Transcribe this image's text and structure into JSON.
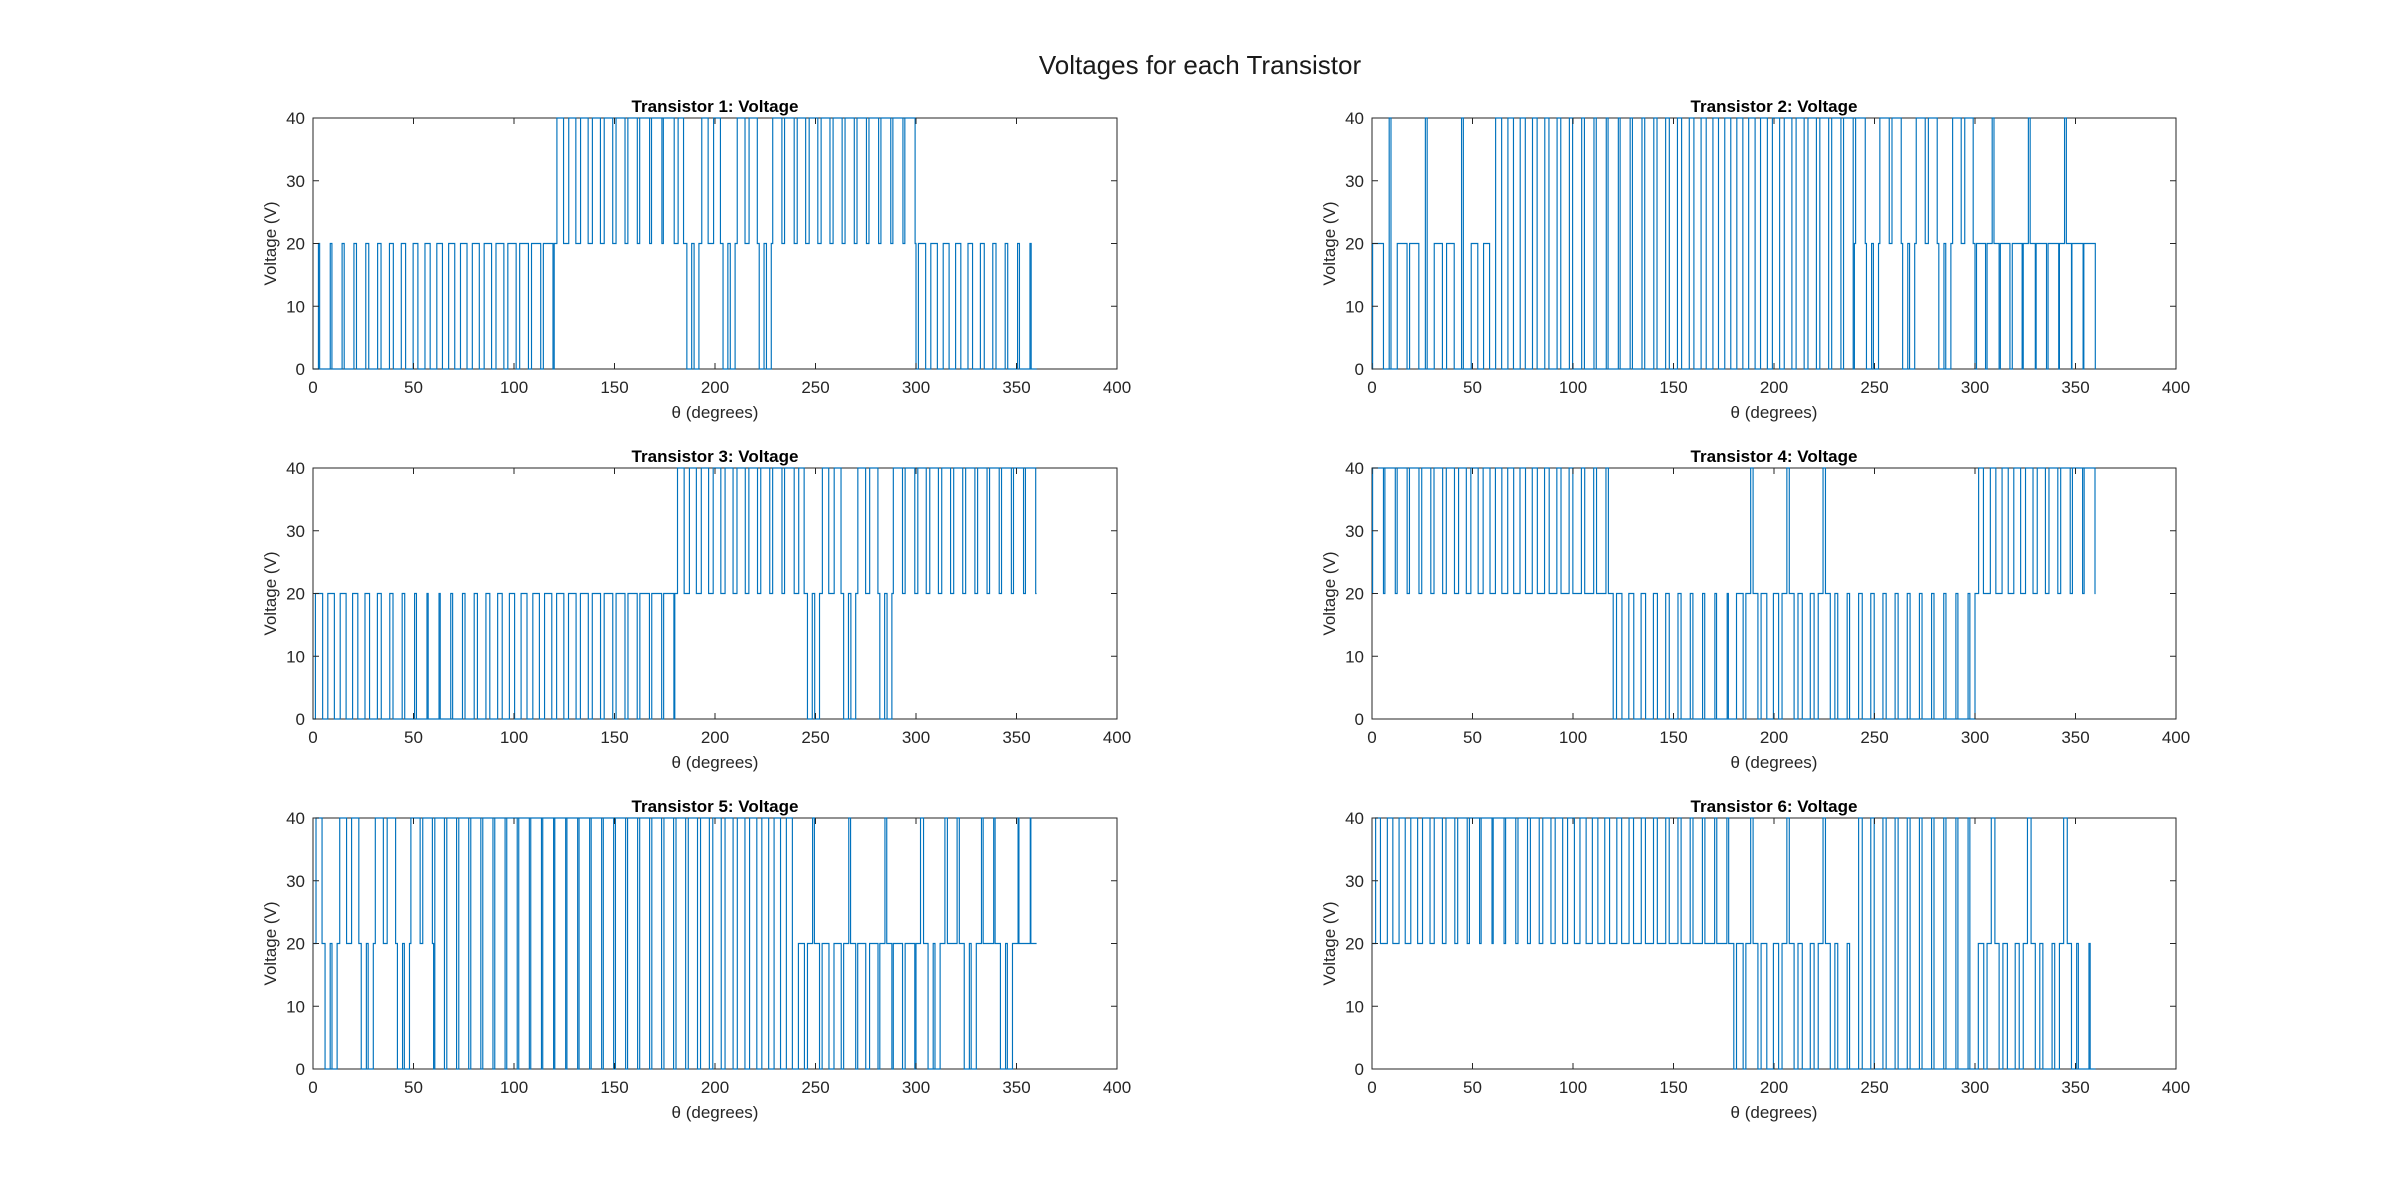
{
  "figure": {
    "title": "Voltages for each Transistor"
  },
  "style": {
    "line_color": "#0072BD",
    "axis_color": "#262626",
    "background": "#ffffff"
  },
  "chart_data": [
    {
      "type": "line",
      "title": "Transistor 1: Voltage",
      "xlabel": "θ (degrees)",
      "ylabel": "Voltage (V)",
      "xlim": [
        0,
        400
      ],
      "ylim": [
        0,
        40
      ],
      "xticks": [
        0,
        50,
        100,
        150,
        200,
        250,
        300,
        350,
        400
      ],
      "yticks": [
        0,
        10,
        20,
        30,
        40
      ],
      "grid": false,
      "series": [
        {
          "style": "pwm-square-wave",
          "x_range": [
            0,
            360
          ],
          "pulse_period_deg": 6,
          "segments": [
            {
              "x0": 0,
              "x1": 120,
              "low": 0,
              "high": 20,
              "duty": [
                0.1,
                0.8
              ]
            },
            {
              "x0": 120,
              "x1": 180,
              "low": 20,
              "high": 40,
              "duty": [
                0.55,
                0.9
              ]
            },
            {
              "x0": 180,
              "x1": 240,
              "low": 20,
              "high": 40,
              "duty": [
                0.45,
                0.8
              ],
              "overlay": {
                "low": 0,
                "high": 20,
                "duty": 0.2
              }
            },
            {
              "x0": 240,
              "x1": 300,
              "low": 20,
              "high": 40,
              "duty": [
                0.7,
                0.85
              ]
            },
            {
              "x0": 300,
              "x1": 360,
              "low": 0,
              "high": 20,
              "duty": [
                0.6,
                0.1
              ]
            }
          ]
        }
      ]
    },
    {
      "type": "line",
      "title": "Transistor 2: Voltage",
      "xlabel": "θ (degrees)",
      "ylabel": "Voltage (V)",
      "xlim": [
        0,
        400
      ],
      "ylim": [
        0,
        40
      ],
      "xticks": [
        0,
        50,
        100,
        150,
        200,
        250,
        300,
        350,
        400
      ],
      "yticks": [
        0,
        10,
        20,
        30,
        40
      ],
      "grid": false,
      "series": [
        {
          "style": "pwm-square-wave",
          "x_range": [
            0,
            360
          ],
          "pulse_period_deg": 6,
          "segments": [
            {
              "x0": 0,
              "x1": 60,
              "low": 0,
              "high": 20,
              "duty": [
                0.9,
                0.5
              ],
              "overlay": {
                "low": 0,
                "high": 40,
                "duty": 0.15
              }
            },
            {
              "x0": 60,
              "x1": 120,
              "low": 0,
              "high": 40,
              "duty": [
                0.5,
                0.15
              ]
            },
            {
              "x0": 120,
              "x1": 180,
              "low": 0,
              "high": 40,
              "duty": [
                0.15,
                0.5
              ]
            },
            {
              "x0": 180,
              "x1": 240,
              "low": 0,
              "high": 40,
              "duty": [
                0.5,
                0.8
              ]
            },
            {
              "x0": 240,
              "x1": 300,
              "low": 20,
              "high": 40,
              "duty": [
                0.8,
                0.7
              ],
              "overlay": {
                "low": 0,
                "high": 20,
                "duty": 0.15
              }
            },
            {
              "x0": 300,
              "x1": 360,
              "low": 0,
              "high": 20,
              "duty": [
                0.75,
                0.95
              ],
              "overlay": {
                "low": 20,
                "high": 40,
                "duty": 0.15
              }
            }
          ]
        }
      ]
    },
    {
      "type": "line",
      "title": "Transistor 3: Voltage",
      "xlabel": "θ (degrees)",
      "ylabel": "Voltage (V)",
      "xlim": [
        0,
        400
      ],
      "ylim": [
        0,
        40
      ],
      "xticks": [
        0,
        50,
        100,
        150,
        200,
        250,
        300,
        350,
        400
      ],
      "yticks": [
        0,
        10,
        20,
        30,
        40
      ],
      "grid": false,
      "series": [
        {
          "style": "pwm-square-wave",
          "x_range": [
            0,
            360
          ],
          "pulse_period_deg": 6,
          "segments": [
            {
              "x0": 0,
              "x1": 60,
              "low": 0,
              "high": 20,
              "duty": [
                0.6,
                0.1
              ]
            },
            {
              "x0": 60,
              "x1": 120,
              "low": 0,
              "high": 20,
              "duty": [
                0.1,
                0.6
              ]
            },
            {
              "x0": 120,
              "x1": 180,
              "low": 0,
              "high": 20,
              "duty": [
                0.6,
                0.85
              ]
            },
            {
              "x0": 180,
              "x1": 240,
              "low": 20,
              "high": 40,
              "duty": [
                0.55,
                0.8
              ]
            },
            {
              "x0": 240,
              "x1": 300,
              "low": 20,
              "high": 40,
              "duty": [
                0.45,
                0.8
              ],
              "overlay": {
                "low": 0,
                "high": 20,
                "duty": 0.2
              }
            },
            {
              "x0": 300,
              "x1": 360,
              "low": 20,
              "high": 40,
              "duty": [
                0.7,
                0.85
              ]
            }
          ]
        }
      ]
    },
    {
      "type": "line",
      "title": "Transistor 4: Voltage",
      "xlabel": "θ (degrees)",
      "ylabel": "Voltage (V)",
      "xlim": [
        0,
        400
      ],
      "ylim": [
        0,
        40
      ],
      "xticks": [
        0,
        50,
        100,
        150,
        200,
        250,
        300,
        350,
        400
      ],
      "yticks": [
        0,
        10,
        20,
        30,
        40
      ],
      "grid": false,
      "series": [
        {
          "style": "pwm-square-wave",
          "x_range": [
            0,
            360
          ],
          "pulse_period_deg": 6,
          "segments": [
            {
              "x0": 0,
              "x1": 120,
              "low": 20,
              "high": 40,
              "duty": [
                0.9,
                0.2
              ]
            },
            {
              "x0": 120,
              "x1": 180,
              "low": 0,
              "high": 20,
              "duty": [
                0.45,
                0.1
              ]
            },
            {
              "x0": 180,
              "x1": 240,
              "low": 0,
              "high": 20,
              "duty": [
                0.55,
                0.2
              ],
              "overlay": {
                "low": 20,
                "high": 40,
                "duty": 0.2
              }
            },
            {
              "x0": 240,
              "x1": 300,
              "low": 0,
              "high": 20,
              "duty": [
                0.3,
                0.15
              ]
            },
            {
              "x0": 300,
              "x1": 360,
              "low": 20,
              "high": 40,
              "duty": [
                0.4,
                0.9
              ]
            }
          ]
        }
      ]
    },
    {
      "type": "line",
      "title": "Transistor 5: Voltage",
      "xlabel": "θ (degrees)",
      "ylabel": "Voltage (V)",
      "xlim": [
        0,
        400
      ],
      "ylim": [
        0,
        40
      ],
      "xticks": [
        0,
        50,
        100,
        150,
        200,
        250,
        300,
        350,
        400
      ],
      "yticks": [
        0,
        10,
        20,
        30,
        40
      ],
      "grid": false,
      "series": [
        {
          "style": "pwm-square-wave",
          "x_range": [
            0,
            360
          ],
          "pulse_period_deg": 6,
          "segments": [
            {
              "x0": 0,
              "x1": 60,
              "low": 20,
              "high": 40,
              "duty": [
                0.5,
                0.8
              ],
              "overlay": {
                "low": 0,
                "high": 20,
                "duty": 0.15
              }
            },
            {
              "x0": 60,
              "x1": 120,
              "low": 0,
              "high": 40,
              "duty": [
                0.8,
                0.9
              ]
            },
            {
              "x0": 120,
              "x1": 180,
              "low": 0,
              "high": 40,
              "duty": [
                0.9,
                0.8
              ]
            },
            {
              "x0": 180,
              "x1": 240,
              "low": 0,
              "high": 40,
              "duty": [
                0.8,
                0.5
              ]
            },
            {
              "x0": 240,
              "x1": 300,
              "low": 0,
              "high": 20,
              "duty": [
                0.5,
                0.8
              ],
              "overlay": {
                "low": 20,
                "high": 40,
                "duty": 0.15
              }
            },
            {
              "x0": 300,
              "x1": 360,
              "low": 20,
              "high": 40,
              "duty": [
                0.25,
                0.05
              ],
              "overlay": {
                "low": 0,
                "high": 20,
                "duty": 0.15
              }
            }
          ]
        }
      ]
    },
    {
      "type": "line",
      "title": "Transistor 6: Voltage",
      "xlabel": "θ (degrees)",
      "ylabel": "Voltage (V)",
      "xlim": [
        0,
        400
      ],
      "ylim": [
        0,
        40
      ],
      "xticks": [
        0,
        50,
        100,
        150,
        200,
        250,
        300,
        350,
        400
      ],
      "yticks": [
        0,
        10,
        20,
        30,
        40
      ],
      "grid": false,
      "series": [
        {
          "style": "pwm-square-wave",
          "x_range": [
            0,
            360
          ],
          "pulse_period_deg": 6,
          "segments": [
            {
              "x0": 0,
              "x1": 60,
              "low": 20,
              "high": 40,
              "duty": [
                0.4,
                0.9
              ]
            },
            {
              "x0": 60,
              "x1": 120,
              "low": 20,
              "high": 40,
              "duty": [
                0.9,
                0.4
              ]
            },
            {
              "x0": 120,
              "x1": 180,
              "low": 20,
              "high": 40,
              "duty": [
                0.4,
                0.15
              ]
            },
            {
              "x0": 180,
              "x1": 240,
              "low": 0,
              "high": 20,
              "duty": [
                0.55,
                0.2
              ],
              "overlay": {
                "low": 20,
                "high": 40,
                "duty": 0.2
              }
            },
            {
              "x0": 240,
              "x1": 300,
              "low": 0,
              "high": 40,
              "duty": [
                0.3,
                0.15
              ]
            },
            {
              "x0": 300,
              "x1": 360,
              "low": 0,
              "high": 20,
              "duty": [
                0.45,
                0.1
              ],
              "overlay": {
                "low": 20,
                "high": 40,
                "duty": 0.3
              }
            }
          ]
        }
      ]
    }
  ]
}
